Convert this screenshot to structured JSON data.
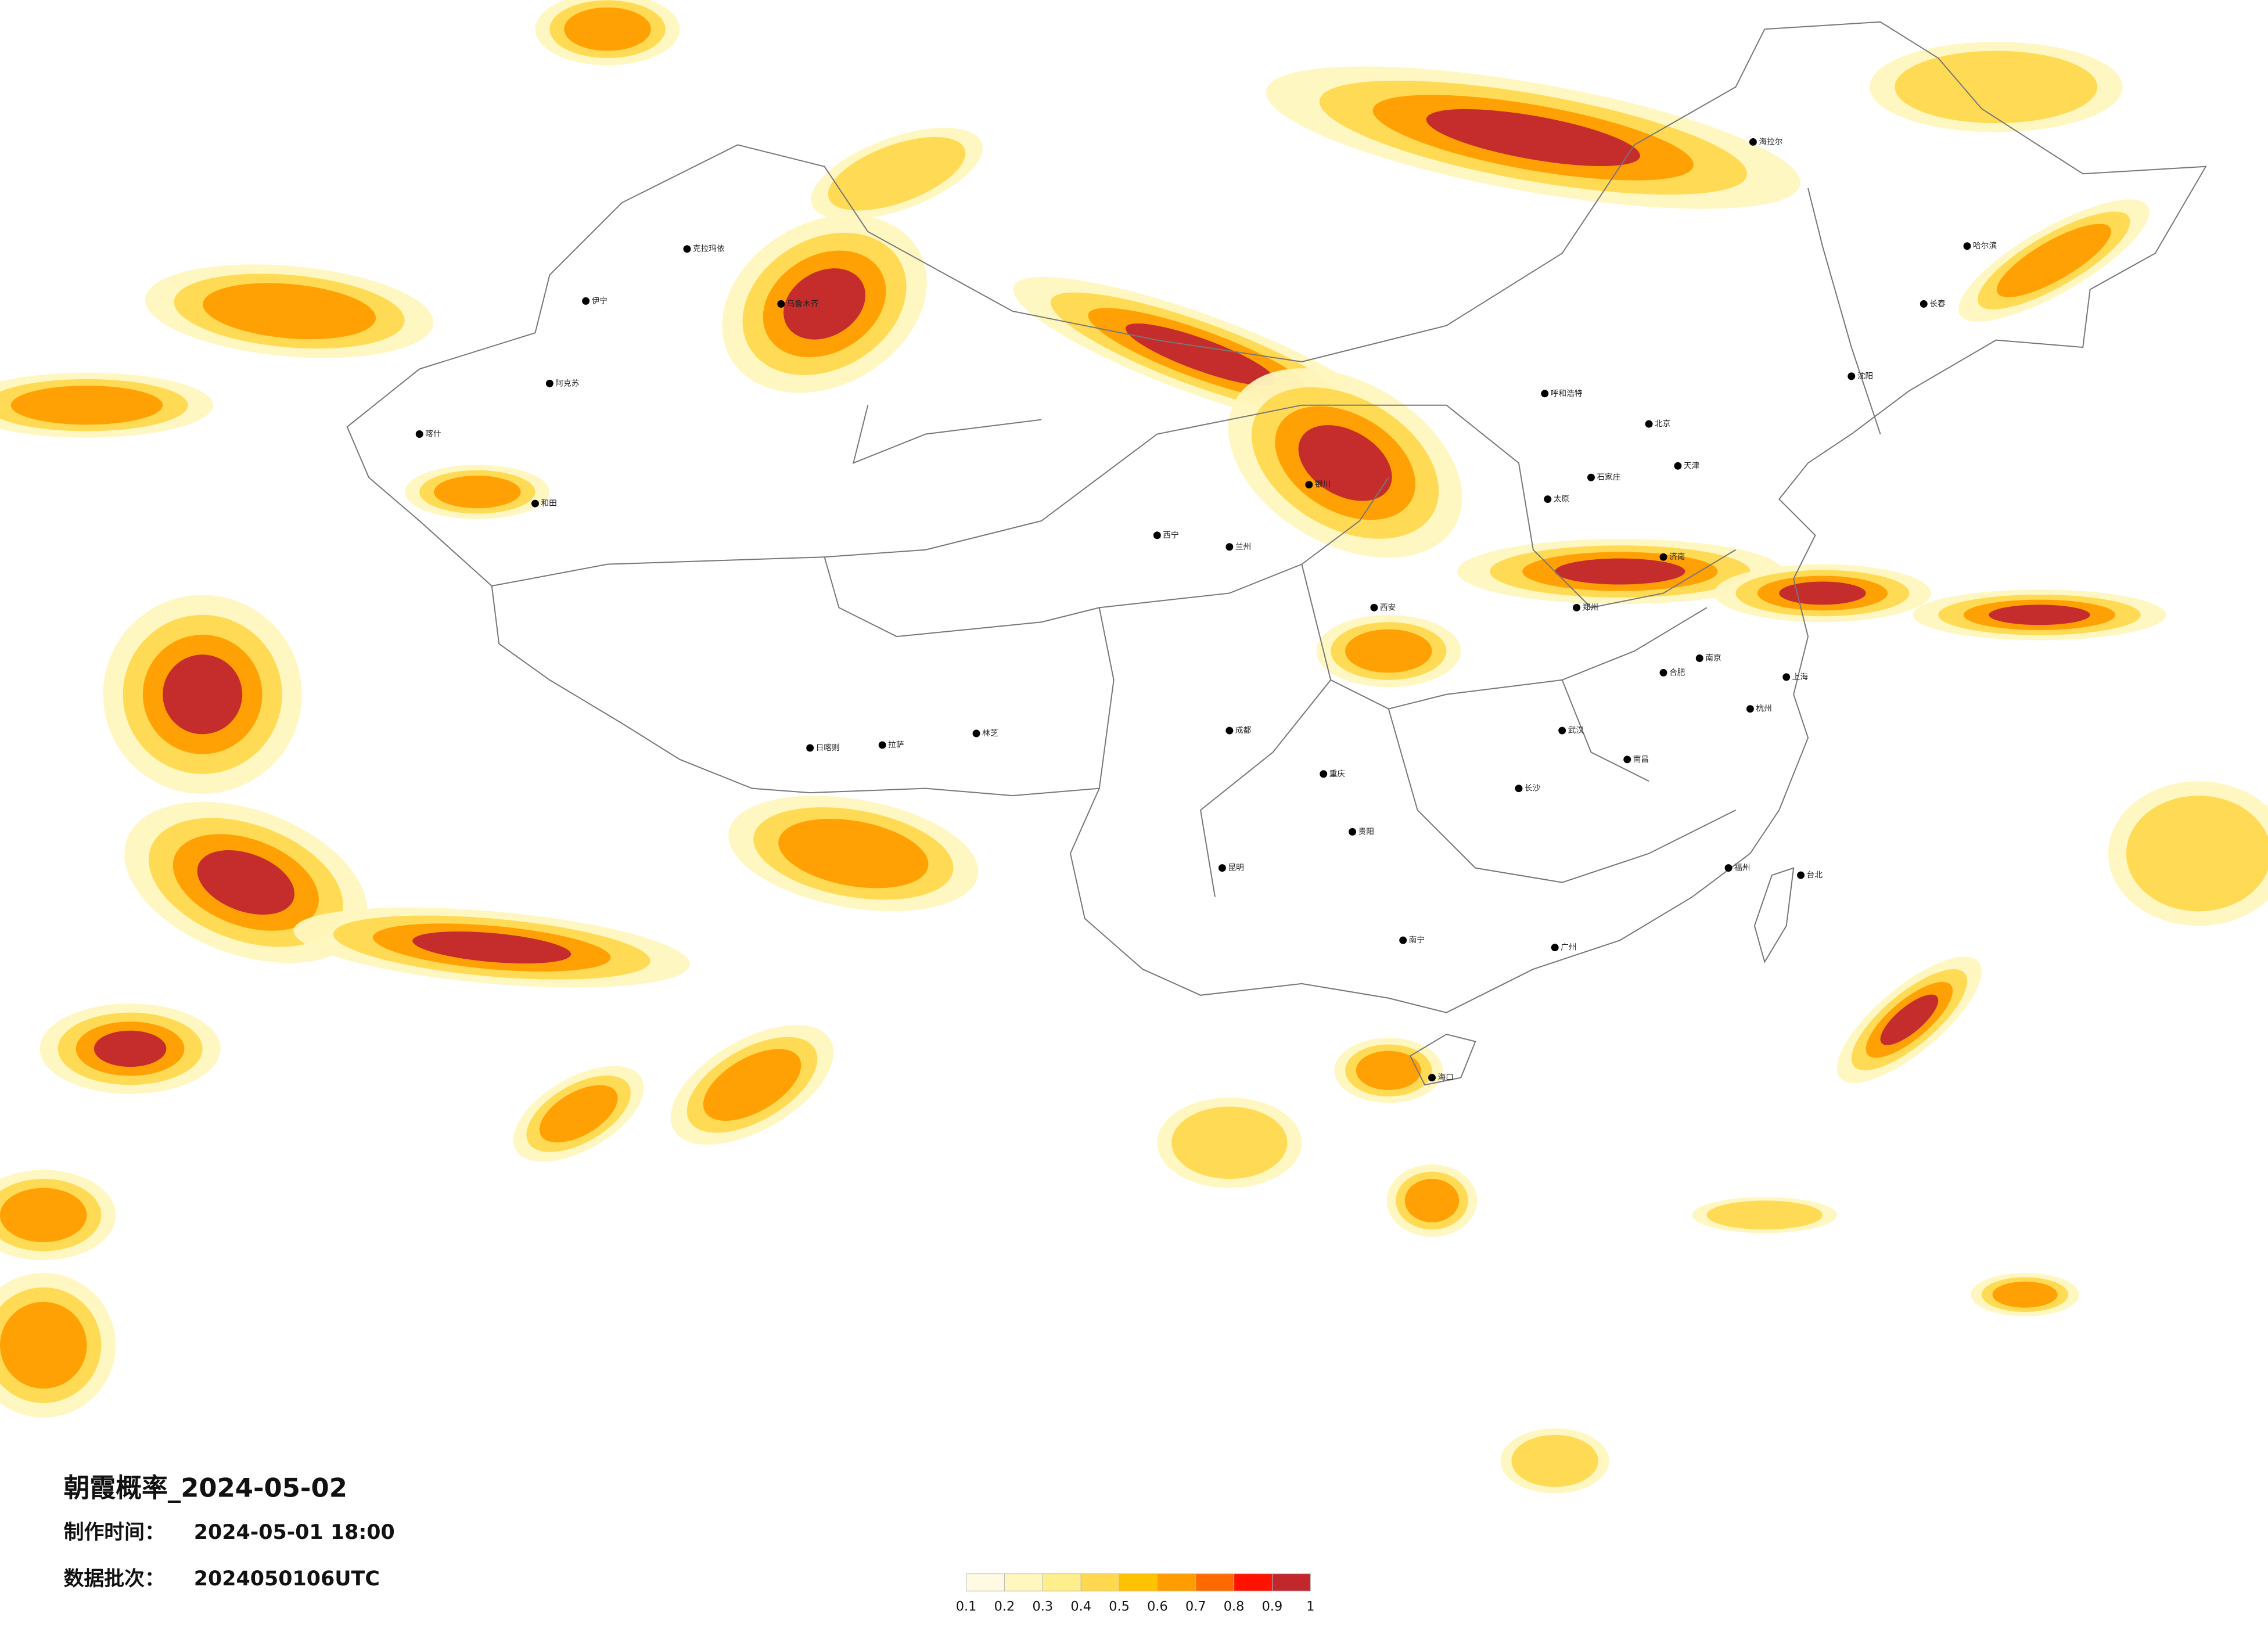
{
  "title": "朝霞概率_2024-05-02",
  "info": [
    {
      "label": "制作时间：",
      "value": "2024-05-01 18:00"
    },
    {
      "label": "数据批次：",
      "value": "2024050106UTC"
    }
  ],
  "colorbar": {
    "ticks": [
      0.1,
      0.2,
      0.3,
      0.4,
      0.5,
      0.6,
      0.7,
      0.8,
      0.9,
      1
    ],
    "colors": [
      "#fffbe3",
      "#fff7bf",
      "#ffee8c",
      "#ffd84f",
      "#ffc200",
      "#ff9d00",
      "#ff6a00",
      "#ff1200",
      "#c1272d"
    ]
  },
  "cities": [
    "乌鲁木齐",
    "克拉玛依",
    "伊宁",
    "阿克苏",
    "喀什",
    "和田",
    "拉萨",
    "日喀则",
    "林芝",
    "西宁",
    "兰州",
    "银川",
    "呼和浩特",
    "北京",
    "天津",
    "石家庄",
    "太原",
    "济南",
    "郑州",
    "西安",
    "成都",
    "重庆",
    "贵阳",
    "昆明",
    "南宁",
    "广州",
    "海口",
    "长沙",
    "武汉",
    "南昌",
    "合肥",
    "南京",
    "上海",
    "杭州",
    "福州",
    "台北",
    "沈阳",
    "长春",
    "哈尔滨",
    "海拉尔"
  ]
}
